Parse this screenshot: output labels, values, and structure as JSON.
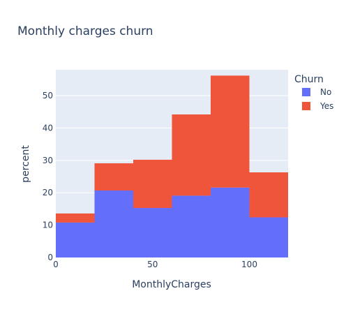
{
  "chart_data": {
    "type": "bar",
    "stacked": true,
    "title": "Monthly charges churn",
    "xlabel": "MonthlyCharges",
    "ylabel": "percent",
    "bin_edges": [
      0,
      20,
      40,
      60,
      80,
      100,
      120
    ],
    "xlim": [
      0,
      120
    ],
    "ylim": [
      0,
      58
    ],
    "xticks": [
      0,
      50,
      100
    ],
    "yticks": [
      0,
      10,
      20,
      30,
      40,
      50
    ],
    "legend": {
      "title": "Churn",
      "position": "right"
    },
    "series": [
      {
        "name": "No",
        "color": "#636efa",
        "values": [
          10.8,
          20.7,
          15.3,
          19.1,
          21.6,
          12.4
        ]
      },
      {
        "name": "Yes",
        "color": "#ef553b",
        "values": [
          2.8,
          8.4,
          14.9,
          25.1,
          34.6,
          13.9
        ]
      }
    ],
    "plot_background": "#e5ecf6",
    "grid": true
  }
}
